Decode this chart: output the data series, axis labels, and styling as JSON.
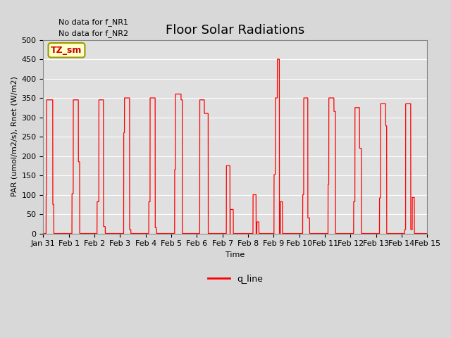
{
  "title": "Floor Solar Radiations",
  "xlabel": "Time",
  "ylabel": "PAR (umol/m2/s), Rnet (W/m2)",
  "text_no_data_1": "No data for f_NR1",
  "text_no_data_2": "No data for f_NR2",
  "legend_label": "q_line",
  "line_color": "#ff0000",
  "bg_color": "#d8d8d8",
  "plot_bg_color": "#e0e0e0",
  "grid_color": "#ffffff",
  "ylim": [
    0,
    500
  ],
  "xlim": [
    0,
    15
  ],
  "yticks": [
    0,
    50,
    100,
    150,
    200,
    250,
    300,
    350,
    400,
    450,
    500
  ],
  "xtick_labels": [
    "Jan 31",
    "Feb 1",
    "Feb 2",
    "Feb 3",
    "Feb 4",
    "Feb 5",
    "Feb 6",
    "Feb 7",
    "Feb 8",
    "Feb 9",
    "Feb 10",
    "Feb 11",
    "Feb 12",
    "Feb 13",
    "Feb 14",
    "Feb 15"
  ],
  "legend_box_facecolor": "#ffffcc",
  "legend_box_edgecolor": "#999900",
  "legend_text_color": "#cc0000",
  "title_fontsize": 13,
  "label_fontsize": 8,
  "tick_fontsize": 8,
  "nodata_fontsize": 8
}
